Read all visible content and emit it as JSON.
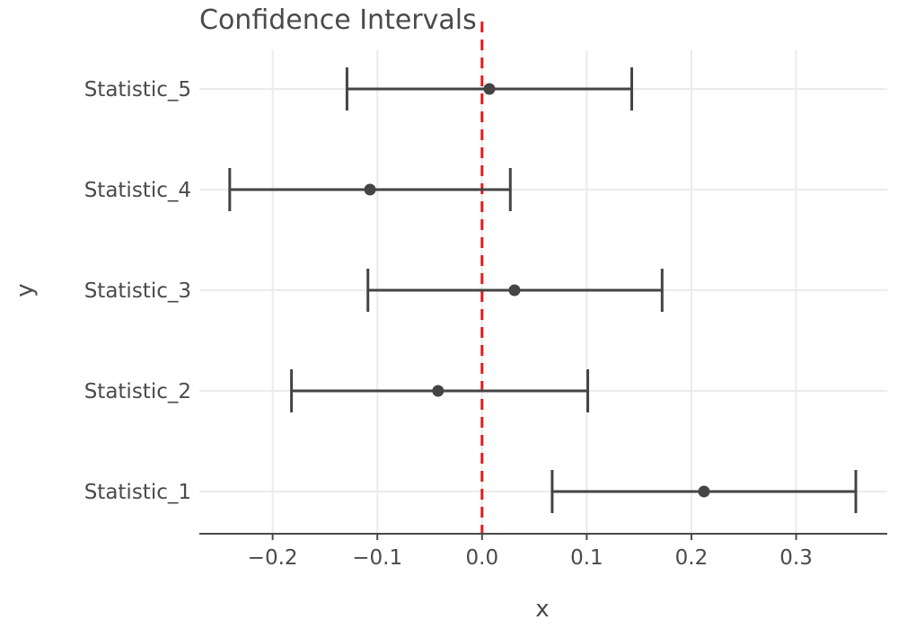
{
  "chart_data": {
    "type": "scatter",
    "title": "Confidence Intervals",
    "xlabel": "x",
    "ylabel": "y",
    "xlim": [
      -0.27,
      0.387
    ],
    "x_ticks": [
      -0.2,
      -0.1,
      0.0,
      0.1,
      0.2,
      0.3
    ],
    "x_tick_labels": [
      "−0.2",
      "−0.1",
      "0.0",
      "0.1",
      "0.2",
      "0.3"
    ],
    "categories": [
      "Statistic_1",
      "Statistic_2",
      "Statistic_3",
      "Statistic_4",
      "Statistic_5"
    ],
    "estimates": [
      0.212,
      -0.042,
      0.031,
      -0.107,
      0.007
    ],
    "lower": [
      0.067,
      -0.182,
      -0.109,
      -0.241,
      -0.129
    ],
    "upper": [
      0.357,
      0.101,
      0.172,
      0.027,
      0.143
    ],
    "reference_line": {
      "x": 0.0,
      "color": "#e41a1c",
      "style": "dashed"
    },
    "point_color": "#444444",
    "grid": true,
    "legend": "none"
  }
}
